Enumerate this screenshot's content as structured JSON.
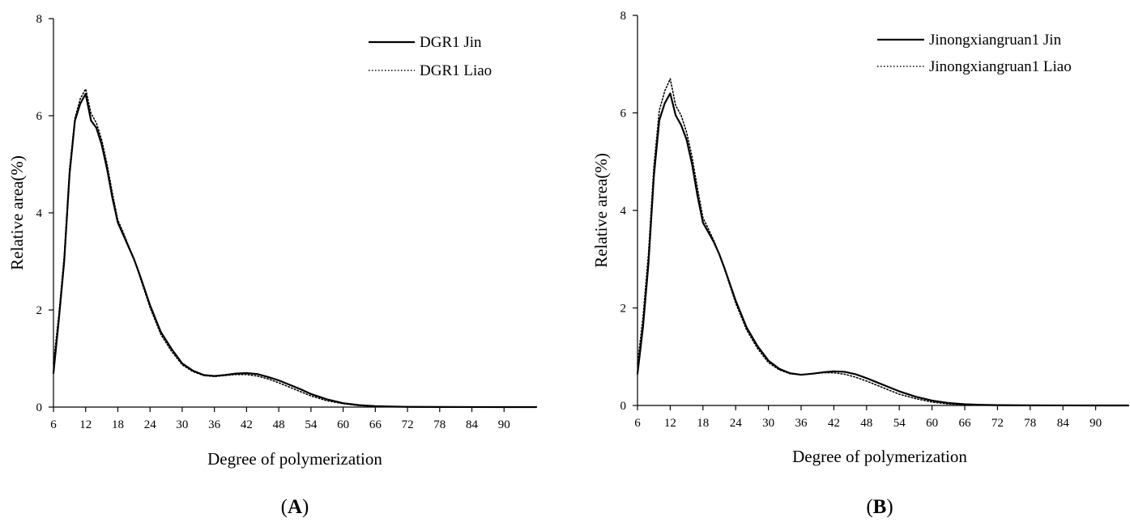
{
  "chart_data": [
    {
      "type": "line",
      "panel_label": "A",
      "xlabel": "Degree of polymerization",
      "ylabel": "Relative area(%)",
      "xlim": [
        6,
        96
      ],
      "ylim": [
        0,
        8
      ],
      "xticks": [
        6,
        12,
        18,
        24,
        30,
        36,
        42,
        48,
        54,
        60,
        66,
        72,
        78,
        84,
        90
      ],
      "yticks": [
        0,
        2,
        4,
        6,
        8
      ],
      "grid": false,
      "legend_position": "top-right",
      "series": [
        {
          "name": "DGR1 Jin",
          "style": "solid",
          "x": [
            6,
            7,
            8,
            9,
            10,
            11,
            12,
            13,
            14,
            15,
            16,
            17,
            18,
            19,
            20,
            21,
            22,
            24,
            26,
            28,
            30,
            32,
            34,
            36,
            38,
            40,
            42,
            44,
            46,
            48,
            50,
            52,
            54,
            57,
            60,
            63,
            66,
            69,
            72,
            78,
            84,
            90,
            96
          ],
          "y": [
            0.7,
            1.8,
            3.0,
            4.8,
            5.9,
            6.25,
            6.45,
            5.9,
            5.75,
            5.4,
            4.9,
            4.3,
            3.8,
            3.55,
            3.3,
            3.05,
            2.75,
            2.1,
            1.55,
            1.2,
            0.9,
            0.75,
            0.66,
            0.64,
            0.66,
            0.69,
            0.7,
            0.68,
            0.62,
            0.55,
            0.46,
            0.37,
            0.27,
            0.16,
            0.08,
            0.04,
            0.02,
            0.01,
            0.005,
            0.002,
            0.001,
            0.0,
            0.0
          ]
        },
        {
          "name": "DGR1 Liao",
          "style": "dotted",
          "x": [
            6,
            7,
            8,
            9,
            10,
            11,
            12,
            13,
            14,
            15,
            16,
            17,
            18,
            19,
            20,
            21,
            22,
            24,
            26,
            28,
            30,
            32,
            34,
            36,
            38,
            40,
            42,
            44,
            46,
            48,
            50,
            52,
            54,
            57,
            60,
            63,
            66,
            69,
            72,
            78,
            84,
            90,
            96
          ],
          "y": [
            0.9,
            1.9,
            3.1,
            4.9,
            5.95,
            6.35,
            6.55,
            6.05,
            5.85,
            5.5,
            5.0,
            4.4,
            3.85,
            3.6,
            3.32,
            3.05,
            2.72,
            2.05,
            1.5,
            1.15,
            0.87,
            0.73,
            0.65,
            0.63,
            0.65,
            0.67,
            0.67,
            0.64,
            0.58,
            0.5,
            0.41,
            0.32,
            0.23,
            0.13,
            0.07,
            0.03,
            0.015,
            0.008,
            0.004,
            0.002,
            0.001,
            0.0,
            0.0
          ]
        }
      ]
    },
    {
      "type": "line",
      "panel_label": "B",
      "xlabel": "Degree of polymerization",
      "ylabel": "Relative area(%)",
      "xlim": [
        6,
        96
      ],
      "ylim": [
        0,
        8
      ],
      "xticks": [
        6,
        12,
        18,
        24,
        30,
        36,
        42,
        48,
        54,
        60,
        66,
        72,
        78,
        84,
        90
      ],
      "yticks": [
        0,
        2,
        4,
        6,
        8
      ],
      "grid": false,
      "legend_position": "top-right",
      "series": [
        {
          "name": "Jinongxiangruan1 Jin",
          "style": "solid",
          "x": [
            6,
            7,
            8,
            9,
            10,
            11,
            12,
            13,
            14,
            15,
            16,
            17,
            18,
            19,
            20,
            21,
            22,
            24,
            26,
            28,
            30,
            32,
            34,
            36,
            38,
            40,
            42,
            44,
            46,
            48,
            50,
            52,
            54,
            57,
            60,
            63,
            66,
            69,
            72,
            78,
            84,
            90,
            96
          ],
          "y": [
            0.65,
            1.6,
            2.9,
            4.7,
            5.85,
            6.2,
            6.4,
            5.95,
            5.75,
            5.45,
            4.95,
            4.3,
            3.75,
            3.55,
            3.35,
            3.1,
            2.8,
            2.15,
            1.6,
            1.22,
            0.92,
            0.75,
            0.66,
            0.63,
            0.65,
            0.68,
            0.7,
            0.69,
            0.64,
            0.56,
            0.47,
            0.38,
            0.29,
            0.18,
            0.1,
            0.05,
            0.025,
            0.012,
            0.006,
            0.002,
            0.001,
            0.0,
            0.0
          ]
        },
        {
          "name": "Jinongxiangruan1 Liao",
          "style": "dotted",
          "x": [
            6,
            7,
            8,
            9,
            10,
            11,
            12,
            13,
            14,
            15,
            16,
            17,
            18,
            19,
            20,
            21,
            22,
            24,
            26,
            28,
            30,
            32,
            34,
            36,
            38,
            40,
            42,
            44,
            46,
            48,
            50,
            52,
            54,
            57,
            60,
            63,
            66,
            69,
            72,
            78,
            84,
            90,
            96
          ],
          "y": [
            0.85,
            1.8,
            3.1,
            4.9,
            6.05,
            6.45,
            6.7,
            6.15,
            5.95,
            5.6,
            5.1,
            4.45,
            3.85,
            3.62,
            3.38,
            3.1,
            2.78,
            2.1,
            1.55,
            1.17,
            0.88,
            0.73,
            0.65,
            0.63,
            0.65,
            0.67,
            0.67,
            0.64,
            0.58,
            0.5,
            0.41,
            0.32,
            0.23,
            0.14,
            0.07,
            0.03,
            0.015,
            0.008,
            0.004,
            0.002,
            0.001,
            0.0,
            0.0
          ]
        }
      ]
    }
  ]
}
